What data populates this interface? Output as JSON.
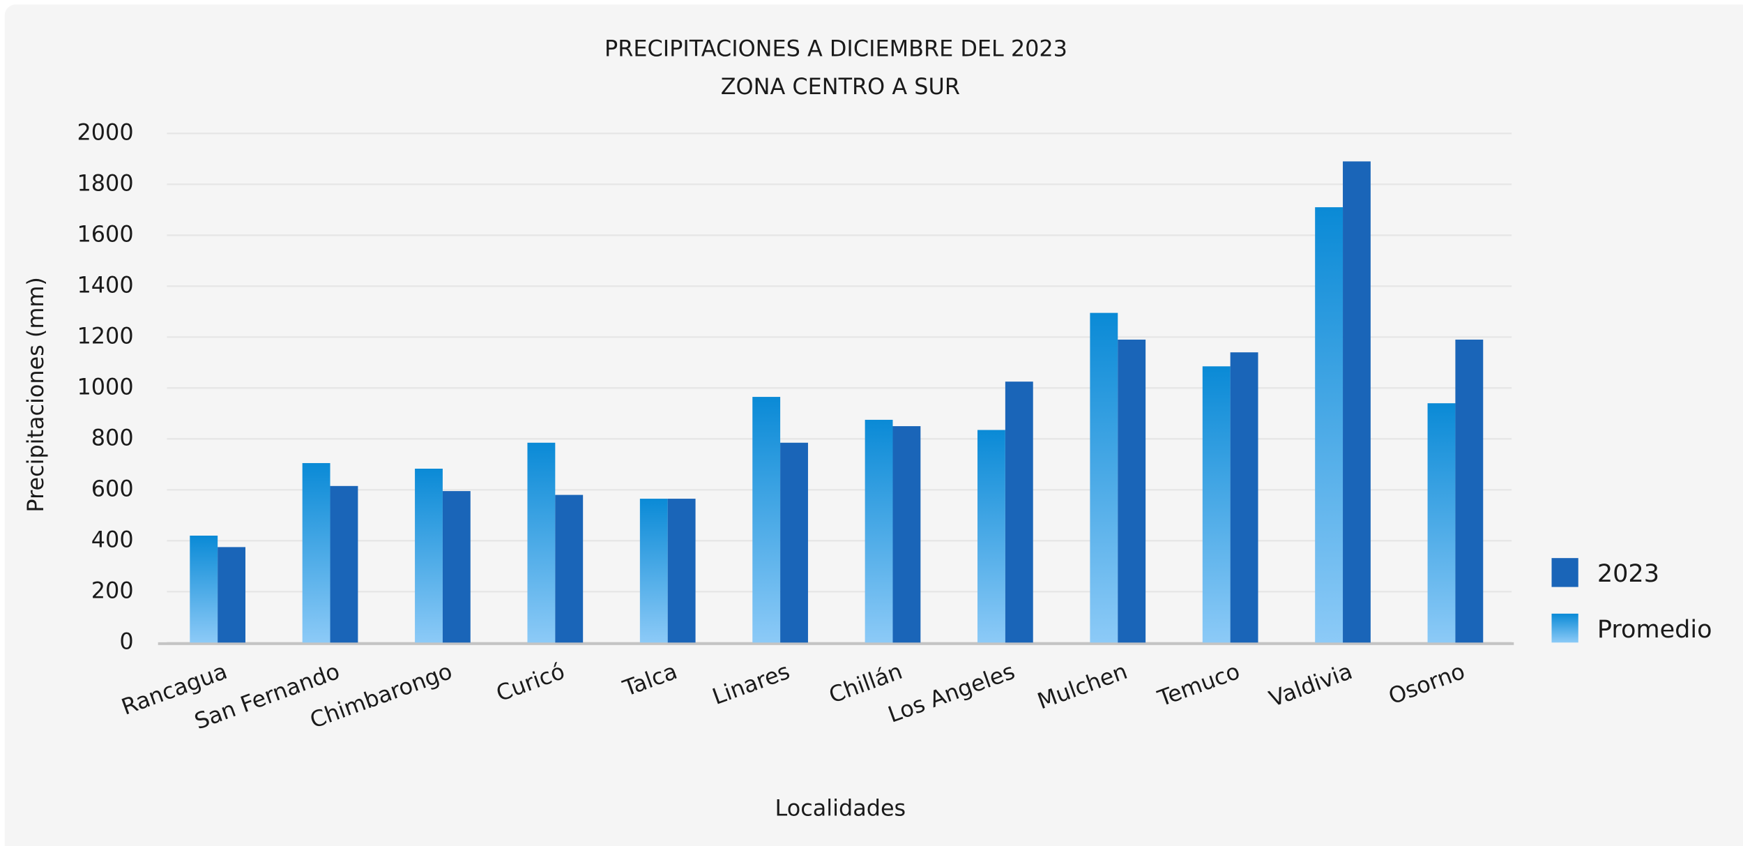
{
  "chart_data": {
    "type": "bar",
    "title": "PRECIPITACIONES A DICIEMBRE DEL 2023",
    "subtitle": "ZONA CENTRO A SUR",
    "x_label": "Localidades",
    "y_label": "Precipitaciones (mm)",
    "categories": [
      "Rancagua",
      "San Fernando",
      "Chimbarongo",
      "Curicó",
      "Talca",
      "Linares",
      "Chillán",
      "Los Angeles",
      "Mulchen",
      "Temuco",
      "Valdivia",
      "Osorno"
    ],
    "series": [
      {
        "name": "Promedio",
        "color": "#0a8ad6",
        "gradient": [
          "#0a8ad6",
          "#8ccaf7"
        ],
        "values": [
          420,
          705,
          683,
          785,
          565,
          965,
          875,
          835,
          1295,
          1085,
          1710,
          940
        ]
      },
      {
        "name": "2023",
        "color": "#1a65b8",
        "values": [
          375,
          615,
          595,
          580,
          565,
          785,
          850,
          1025,
          1190,
          1140,
          1890,
          1190
        ]
      }
    ],
    "ylim": [
      0,
      2000
    ],
    "yticks": [
      0,
      200,
      400,
      600,
      800,
      1000,
      1200,
      1400,
      1600,
      1800,
      2000
    ],
    "grid": true,
    "legend": "right"
  }
}
